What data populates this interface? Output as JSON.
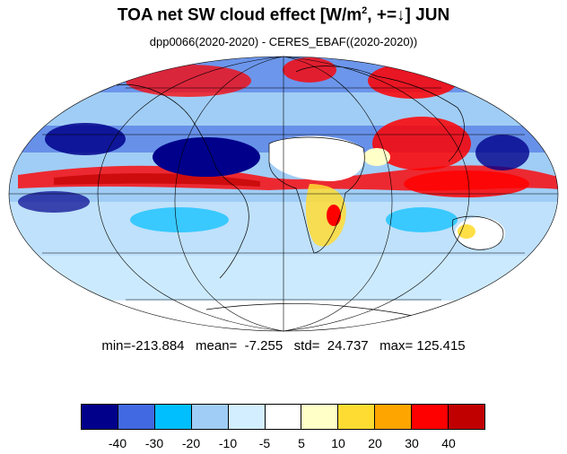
{
  "title": {
    "main": "TOA net SW cloud effect [W/m",
    "sup": "2",
    "rest": ", +=↓]  JUN"
  },
  "subtitle": "dpp0066(2020-2020) - CERES_EBAF((2020-2020))",
  "stats": "min=-213.884   mean=  -7.255   std=  24.737   max= 125.415",
  "colorbar": {
    "colors": [
      "#00008b",
      "#4169e1",
      "#00bfff",
      "#a0cdf5",
      "#d3efff",
      "#ffffff",
      "#ffffc8",
      "#ffdc32",
      "#ffa500",
      "#ff0000",
      "#c00000"
    ],
    "labels": [
      "-40",
      "-30",
      "-20",
      "-10",
      "-5",
      "5",
      "10",
      "20",
      "30",
      "40"
    ]
  }
}
